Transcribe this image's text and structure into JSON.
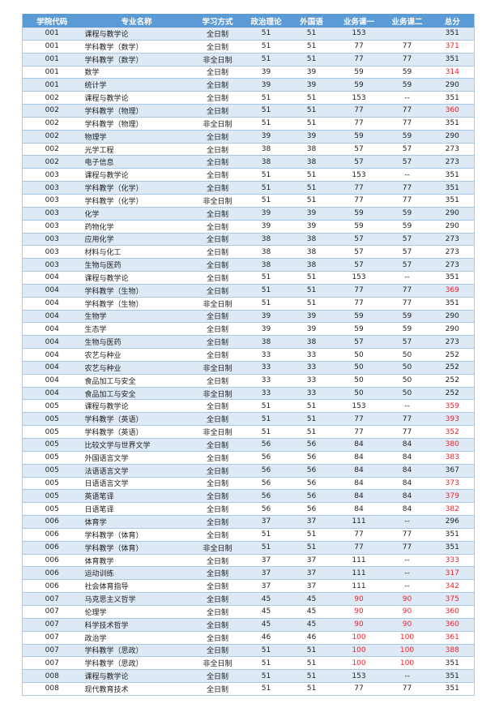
{
  "colors": {
    "header_bg": "#5b9bd5",
    "row_alt_bg": "#dde9f5",
    "highlight": "#f0202a"
  },
  "table": {
    "headers": [
      "学院代码",
      "专业名称",
      "学习方式",
      "政治理论",
      "外国语",
      "业务课一",
      "业务课二",
      "总分"
    ],
    "rows": [
      {
        "cells": [
          "001",
          "课程与教学论",
          "全日制",
          "51",
          "51",
          "153",
          "",
          "351"
        ],
        "red": []
      },
      {
        "cells": [
          "001",
          "学科教学（数学）",
          "全日制",
          "51",
          "51",
          "77",
          "77",
          "371"
        ],
        "red": [
          7
        ]
      },
      {
        "cells": [
          "001",
          "学科教学（数学）",
          "非全日制",
          "51",
          "51",
          "77",
          "77",
          "351"
        ],
        "red": []
      },
      {
        "cells": [
          "001",
          "数学",
          "全日制",
          "39",
          "39",
          "59",
          "59",
          "314"
        ],
        "red": [
          7
        ]
      },
      {
        "cells": [
          "001",
          "统计学",
          "全日制",
          "39",
          "39",
          "59",
          "59",
          "290"
        ],
        "red": []
      },
      {
        "cells": [
          "002",
          "课程与教学论",
          "全日制",
          "51",
          "51",
          "153",
          "--",
          "351"
        ],
        "red": []
      },
      {
        "cells": [
          "002",
          "学科教学（物理）",
          "全日制",
          "51",
          "51",
          "77",
          "77",
          "360"
        ],
        "red": [
          7
        ]
      },
      {
        "cells": [
          "002",
          "学科教学（物理）",
          "非全日制",
          "51",
          "51",
          "77",
          "77",
          "351"
        ],
        "red": []
      },
      {
        "cells": [
          "002",
          "物理学",
          "全日制",
          "39",
          "39",
          "59",
          "59",
          "290"
        ],
        "red": []
      },
      {
        "cells": [
          "002",
          "光学工程",
          "全日制",
          "38",
          "38",
          "57",
          "57",
          "273"
        ],
        "red": []
      },
      {
        "cells": [
          "002",
          "电子信息",
          "全日制",
          "38",
          "38",
          "57",
          "57",
          "273"
        ],
        "red": []
      },
      {
        "cells": [
          "003",
          "课程与教学论",
          "全日制",
          "51",
          "51",
          "153",
          "--",
          "351"
        ],
        "red": []
      },
      {
        "cells": [
          "003",
          "学科教学（化学）",
          "全日制",
          "51",
          "51",
          "77",
          "77",
          "351"
        ],
        "red": []
      },
      {
        "cells": [
          "003",
          "学科教学（化学）",
          "非全日制",
          "51",
          "51",
          "77",
          "77",
          "351"
        ],
        "red": []
      },
      {
        "cells": [
          "003",
          "化学",
          "全日制",
          "39",
          "39",
          "59",
          "59",
          "290"
        ],
        "red": []
      },
      {
        "cells": [
          "003",
          "药物化学",
          "全日制",
          "39",
          "39",
          "59",
          "59",
          "290"
        ],
        "red": []
      },
      {
        "cells": [
          "003",
          "应用化学",
          "全日制",
          "38",
          "38",
          "57",
          "57",
          "273"
        ],
        "red": []
      },
      {
        "cells": [
          "003",
          "材料与化工",
          "全日制",
          "38",
          "38",
          "57",
          "57",
          "273"
        ],
        "red": []
      },
      {
        "cells": [
          "003",
          "生物与医药",
          "全日制",
          "38",
          "38",
          "57",
          "57",
          "273"
        ],
        "red": []
      },
      {
        "cells": [
          "004",
          "课程与教学论",
          "全日制",
          "51",
          "51",
          "153",
          "--",
          "351"
        ],
        "red": []
      },
      {
        "cells": [
          "004",
          "学科教学（生物）",
          "全日制",
          "51",
          "51",
          "77",
          "77",
          "369"
        ],
        "red": [
          7
        ]
      },
      {
        "cells": [
          "004",
          "学科教学（生物）",
          "非全日制",
          "51",
          "51",
          "77",
          "77",
          "351"
        ],
        "red": []
      },
      {
        "cells": [
          "004",
          "生物学",
          "全日制",
          "39",
          "39",
          "59",
          "59",
          "290"
        ],
        "red": []
      },
      {
        "cells": [
          "004",
          "生态学",
          "全日制",
          "39",
          "39",
          "59",
          "59",
          "290"
        ],
        "red": []
      },
      {
        "cells": [
          "004",
          "生物与医药",
          "全日制",
          "38",
          "38",
          "57",
          "57",
          "273"
        ],
        "red": []
      },
      {
        "cells": [
          "004",
          "农艺与种业",
          "全日制",
          "33",
          "33",
          "50",
          "50",
          "252"
        ],
        "red": []
      },
      {
        "cells": [
          "004",
          "农艺与种业",
          "非全日制",
          "33",
          "33",
          "50",
          "50",
          "252"
        ],
        "red": []
      },
      {
        "cells": [
          "004",
          "食品加工与安全",
          "全日制",
          "33",
          "33",
          "50",
          "50",
          "252"
        ],
        "red": []
      },
      {
        "cells": [
          "004",
          "食品加工与安全",
          "非全日制",
          "33",
          "33",
          "50",
          "50",
          "252"
        ],
        "red": []
      },
      {
        "cells": [
          "005",
          "课程与教学论",
          "全日制",
          "51",
          "51",
          "153",
          "--",
          "359"
        ],
        "red": [
          7
        ]
      },
      {
        "cells": [
          "005",
          "学科教学（英语）",
          "全日制",
          "51",
          "51",
          "77",
          "77",
          "393"
        ],
        "red": [
          7
        ]
      },
      {
        "cells": [
          "005",
          "学科教学（英语）",
          "非全日制",
          "51",
          "51",
          "77",
          "77",
          "352"
        ],
        "red": [
          7
        ]
      },
      {
        "cells": [
          "005",
          "比较文学与世界文学",
          "全日制",
          "56",
          "56",
          "84",
          "84",
          "380"
        ],
        "red": [
          7
        ]
      },
      {
        "cells": [
          "005",
          "外国语言文学",
          "全日制",
          "56",
          "56",
          "84",
          "84",
          "383"
        ],
        "red": [
          7
        ]
      },
      {
        "cells": [
          "005",
          "法语语言文学",
          "全日制",
          "56",
          "56",
          "84",
          "84",
          "367"
        ],
        "red": []
      },
      {
        "cells": [
          "005",
          "日语语言文学",
          "全日制",
          "56",
          "56",
          "84",
          "84",
          "373"
        ],
        "red": [
          7
        ]
      },
      {
        "cells": [
          "005",
          "英语笔译",
          "全日制",
          "56",
          "56",
          "84",
          "84",
          "379"
        ],
        "red": [
          7
        ]
      },
      {
        "cells": [
          "005",
          "日语笔译",
          "全日制",
          "56",
          "56",
          "84",
          "84",
          "382"
        ],
        "red": [
          7
        ]
      },
      {
        "cells": [
          "006",
          "体育学",
          "全日制",
          "37",
          "37",
          "111",
          "--",
          "296"
        ],
        "red": []
      },
      {
        "cells": [
          "006",
          "学科教学（体育）",
          "全日制",
          "51",
          "51",
          "77",
          "77",
          "351"
        ],
        "red": []
      },
      {
        "cells": [
          "006",
          "学科教学（体育）",
          "非全日制",
          "51",
          "51",
          "77",
          "77",
          "351"
        ],
        "red": []
      },
      {
        "cells": [
          "006",
          "体育教学",
          "全日制",
          "37",
          "37",
          "111",
          "--",
          "333"
        ],
        "red": [
          7
        ]
      },
      {
        "cells": [
          "006",
          "运动训练",
          "全日制",
          "37",
          "37",
          "111",
          "--",
          "317"
        ],
        "red": [
          7
        ]
      },
      {
        "cells": [
          "006",
          "社会体育指导",
          "全日制",
          "37",
          "37",
          "111",
          "--",
          "342"
        ],
        "red": [
          7
        ]
      },
      {
        "cells": [
          "007",
          "马克思主义哲学",
          "全日制",
          "45",
          "45",
          "90",
          "90",
          "375"
        ],
        "red": [
          5,
          6,
          7
        ]
      },
      {
        "cells": [
          "007",
          "伦理学",
          "全日制",
          "45",
          "45",
          "90",
          "90",
          "360"
        ],
        "red": [
          5,
          6,
          7
        ]
      },
      {
        "cells": [
          "007",
          "科学技术哲学",
          "全日制",
          "45",
          "45",
          "90",
          "90",
          "360"
        ],
        "red": [
          5,
          6,
          7
        ]
      },
      {
        "cells": [
          "007",
          "政治学",
          "全日制",
          "46",
          "46",
          "100",
          "100",
          "361"
        ],
        "red": [
          5,
          6,
          7
        ]
      },
      {
        "cells": [
          "007",
          "学科教学（思政）",
          "全日制",
          "51",
          "51",
          "100",
          "100",
          "388"
        ],
        "red": [
          5,
          6,
          7
        ]
      },
      {
        "cells": [
          "007",
          "学科教学（思政）",
          "非全日制",
          "51",
          "51",
          "100",
          "100",
          "351"
        ],
        "red": [
          5,
          6
        ]
      },
      {
        "cells": [
          "008",
          "课程与教学论",
          "全日制",
          "51",
          "51",
          "153",
          "--",
          "351"
        ],
        "red": []
      },
      {
        "cells": [
          "008",
          "现代教育技术",
          "全日制",
          "51",
          "51",
          "77",
          "77",
          "351"
        ],
        "red": []
      }
    ]
  }
}
